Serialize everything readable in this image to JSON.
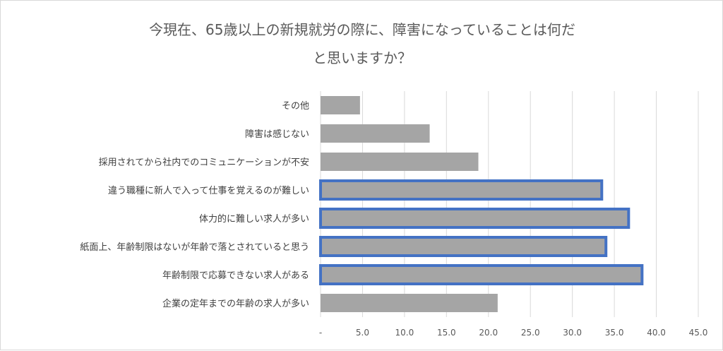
{
  "chart_data": {
    "type": "bar",
    "orientation": "horizontal",
    "title_lines": [
      "今現在、65歳以上の新規就労の際に、障害になっていることは何だ",
      "と思いますか？"
    ],
    "categories": [
      "その他",
      "障害は感じない",
      "採用されてから社内でのコミュニケーションが不安",
      "違う職種に新人で入って仕事を覚えるのが難しい",
      "体力的に難しい求人が多い",
      "紙面上、年齢制限はないが年齢で落とされていると思う",
      "年齢制限で応募できない求人がある",
      "企業の定年までの年齢の求人が多い"
    ],
    "values": [
      4.7,
      13.0,
      18.8,
      33.5,
      36.7,
      34.0,
      38.3,
      21.1
    ],
    "highlighted": [
      false,
      false,
      false,
      true,
      true,
      true,
      true,
      false
    ],
    "xlim": [
      0,
      45
    ],
    "xticks": [
      "-",
      "5.0",
      "10.0",
      "15.0",
      "20.0",
      "25.0",
      "30.0",
      "35.0",
      "40.0",
      "45.0"
    ],
    "grid": true,
    "colors": {
      "bar": "#a5a5a5",
      "highlight_border": "#4472c4",
      "grid": "#d9d9d9"
    }
  }
}
